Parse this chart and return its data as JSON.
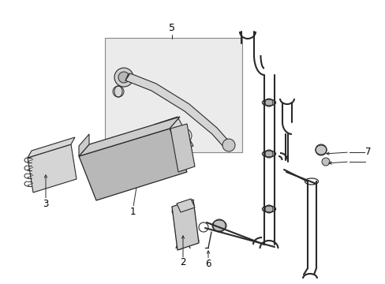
{
  "bg": "#ffffff",
  "lc": "#2a2a2a",
  "lc_light": "#555555",
  "fill_hatch": "#b8b8b8",
  "fill_light": "#e0e0e0",
  "fill_box": "#e8e8e8",
  "fill_white": "#f5f5f5"
}
